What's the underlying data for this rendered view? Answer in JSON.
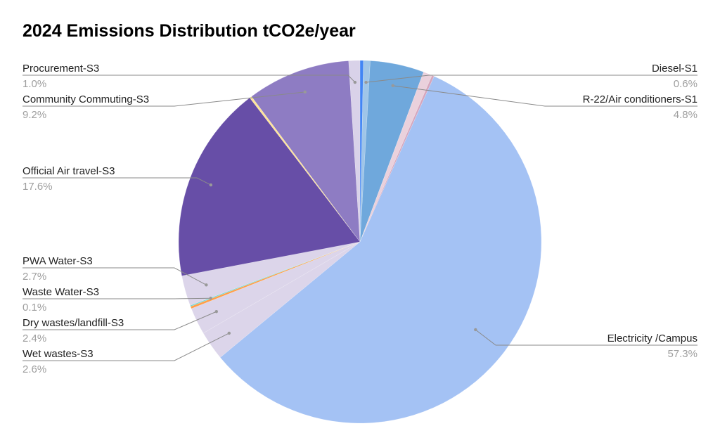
{
  "chart_data": {
    "type": "pie",
    "title": "2024 Emissions Distribution tCO2e/year",
    "slices": [
      {
        "name": "",
        "value": 0.3,
        "color": "#4285f4",
        "label": null
      },
      {
        "name": "Diesel-S1",
        "value": 0.6,
        "color": "#9fc5e8",
        "label": "0.6%"
      },
      {
        "name": "R-22/Air conditioners-S1",
        "value": 4.8,
        "color": "#6fa8dc",
        "label": "4.8%"
      },
      {
        "name": "",
        "value": 0.8,
        "color": "#ead1dc",
        "label": null
      },
      {
        "name": "",
        "value": 0.2,
        "color": "#d5a6bd",
        "label": null
      },
      {
        "name": "Electricity /Campus",
        "value": 57.3,
        "color": "#a4c2f4",
        "label": "57.3%"
      },
      {
        "name": "Wet wastes-S3",
        "value": 2.6,
        "color": "#dcd5ea",
        "label": "2.6%"
      },
      {
        "name": "Dry wastes/landfill-S3",
        "value": 2.4,
        "color": "#dcd5ea",
        "label": "2.4%"
      },
      {
        "name": "",
        "value": 0.2,
        "color": "#ff9e4a",
        "label": null
      },
      {
        "name": "Waste Water-S3",
        "value": 0.1,
        "color": "#76d7d2",
        "label": "0.1%"
      },
      {
        "name": "PWA Water-S3",
        "value": 2.7,
        "color": "#dcd5ea",
        "label": "2.7%"
      },
      {
        "name": "Official Air travel-S3",
        "value": 17.6,
        "color": "#674ea7",
        "label": "17.6%"
      },
      {
        "name": "",
        "value": 0.2,
        "color": "#ffe599",
        "label": null
      },
      {
        "name": "Community Commuting-S3",
        "value": 9.2,
        "color": "#8e7cc3",
        "label": "9.2%"
      },
      {
        "name": "Procurement-S3",
        "value": 1.0,
        "color": "#d9d2e9",
        "label": "1.0%"
      }
    ],
    "legend": "none"
  }
}
